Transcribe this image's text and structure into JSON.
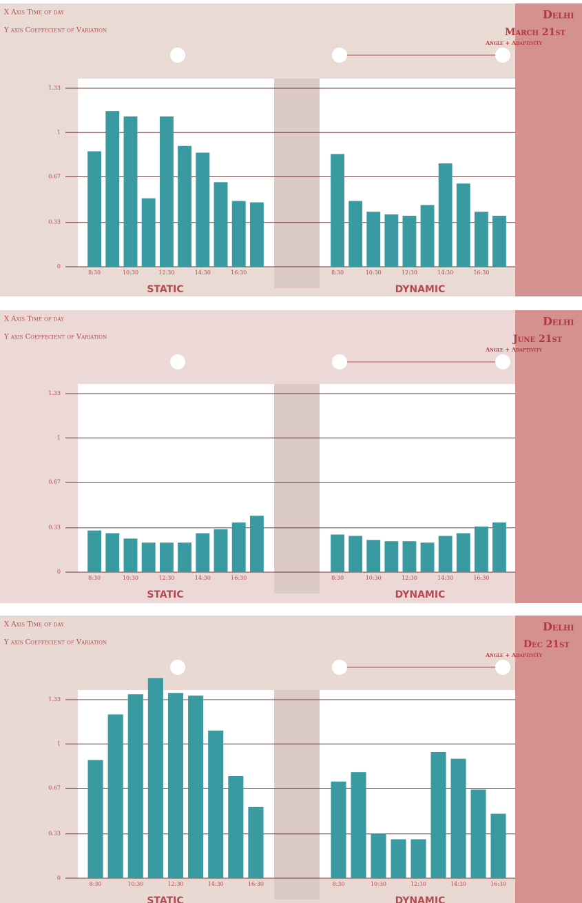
{
  "panels": [
    {
      "x_note": "X Axis Time of day",
      "y_note": "Y axis Coeffecient of Variation",
      "city": "Delhi",
      "date": "March 21st",
      "subtitle": "Angle + Adaptivity"
    },
    {
      "x_note": "X Axis Time of day",
      "y_note": "Y axis Coeffecient of Variation",
      "city": "Delhi",
      "date": "June 21st",
      "subtitle": "Angle + Adaptivity"
    },
    {
      "x_note": "X Axis Time of day",
      "y_note": "Y axis Coeffecient of Variation",
      "city": "Delhi",
      "date": "Dec 21st",
      "subtitle": "Angle + Adaptivity"
    }
  ],
  "chart_data": [
    {
      "type": "bar",
      "title": "STATIC",
      "color": "#3a9aa2",
      "grid": true,
      "ylim": [
        0,
        1.33
      ],
      "yticks": [
        0,
        0.33,
        0.67,
        1,
        1.33
      ],
      "categories": [
        "8:30",
        null,
        "10:30",
        null,
        "12:30",
        null,
        "14:30",
        null,
        "16:30",
        null
      ],
      "values": [
        0.86,
        1.16,
        1.12,
        0.51,
        1.12,
        0.9,
        0.85,
        0.63,
        0.49,
        0.48
      ]
    },
    {
      "type": "bar",
      "title": "DYNAMIC",
      "color": "#3a9aa2",
      "grid": true,
      "ylim": [
        0,
        1.33
      ],
      "yticks": [
        0,
        0.33,
        0.67,
        1,
        1.33
      ],
      "categories": [
        "8:30",
        null,
        "10:30",
        null,
        "12:30",
        null,
        "14:30",
        null,
        "16:30",
        null
      ],
      "values": [
        0.84,
        0.49,
        0.41,
        0.39,
        0.38,
        0.46,
        0.77,
        0.62,
        0.41,
        0.38
      ]
    },
    {
      "type": "bar",
      "title": "STATIC",
      "color": "#3a9aa2",
      "grid": true,
      "ylim": [
        0,
        1.33
      ],
      "yticks": [
        0,
        0.33,
        0.67,
        1,
        1.33
      ],
      "categories": [
        "8:30",
        null,
        "10:30",
        null,
        "12:30",
        null,
        "14:30",
        null,
        "16:30",
        null
      ],
      "values": [
        0.31,
        0.29,
        0.25,
        0.22,
        0.22,
        0.22,
        0.29,
        0.32,
        0.37,
        0.42
      ]
    },
    {
      "type": "bar",
      "title": "DYNAMIC",
      "color": "#3a9aa2",
      "grid": true,
      "ylim": [
        0,
        1.33
      ],
      "yticks": [
        0,
        0.33,
        0.67,
        1,
        1.33
      ],
      "categories": [
        "8:30",
        null,
        "10:30",
        null,
        "12:30",
        null,
        "14:30",
        null,
        "16:30",
        null
      ],
      "values": [
        0.28,
        0.27,
        0.24,
        0.23,
        0.23,
        0.22,
        0.27,
        0.29,
        0.34,
        0.37
      ]
    },
    {
      "type": "bar",
      "title": "STATIC",
      "color": "#3a9aa2",
      "grid": true,
      "ylim": [
        0,
        1.33
      ],
      "yticks": [
        0,
        0.33,
        0.67,
        1,
        1.33
      ],
      "categories": [
        "8:30",
        null,
        "10:30",
        null,
        "12:30",
        null,
        "14:30",
        null,
        "16:30"
      ],
      "values": [
        0.88,
        1.22,
        1.37,
        1.49,
        1.38,
        1.36,
        1.1,
        0.76,
        0.53
      ]
    },
    {
      "type": "bar",
      "title": "DYNAMIC",
      "color": "#3a9aa2",
      "grid": true,
      "ylim": [
        0,
        1.33
      ],
      "yticks": [
        0,
        0.33,
        0.67,
        1,
        1.33
      ],
      "categories": [
        "8:30",
        null,
        "10:30",
        null,
        "12:30",
        null,
        "14:30",
        null,
        "16:30"
      ],
      "values": [
        0.72,
        0.79,
        0.33,
        0.29,
        0.29,
        0.94,
        0.89,
        0.66,
        0.48
      ]
    }
  ]
}
